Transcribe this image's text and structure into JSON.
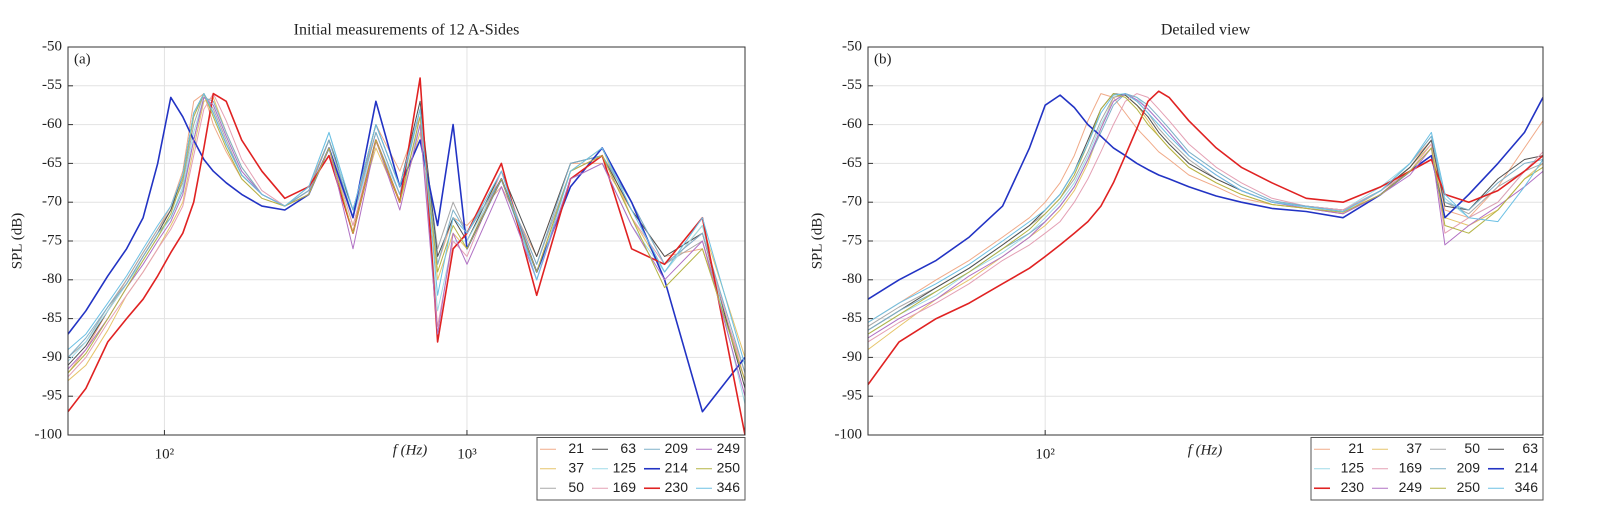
{
  "chart_data": [
    {
      "type": "line",
      "title": "Initial measurements of 12 A-Sides",
      "annotation": "(a)",
      "xlabel": "f (Hz)",
      "ylabel": "SPL (dB)",
      "xscale": "log",
      "grid": true,
      "legend": {
        "loc": "lower right",
        "columns": 4,
        "order": "column"
      },
      "xlim": [
        48,
        8300
      ],
      "ylim": [
        -100,
        -50
      ],
      "xticks": [
        {
          "value": 100,
          "label": "10²"
        },
        {
          "value": 1000,
          "label": "10³"
        }
      ],
      "yticks": [
        -50,
        -55,
        -60,
        -65,
        -70,
        -75,
        -80,
        -85,
        -90,
        -95,
        -100
      ],
      "x": [
        48,
        55,
        65,
        75,
        85,
        95,
        105,
        115,
        125,
        135,
        145,
        160,
        180,
        210,
        250,
        300,
        350,
        420,
        500,
        600,
        700,
        800,
        900,
        1000,
        1300,
        1700,
        2200,
        2800,
        3500,
        4500,
        6000,
        8300
      ],
      "series": [
        {
          "name": "21",
          "color": "#f0aa88",
          "values": [
            -92,
            -89,
            -84,
            -80,
            -76.5,
            -73.5,
            -70.5,
            -66,
            -57,
            -56,
            -60,
            -63.5,
            -67,
            -69.5,
            -70.5,
            -68,
            -62,
            -72,
            -60,
            -66,
            -59,
            -78,
            -72,
            -73,
            -68,
            -77,
            -65,
            -65,
            -71,
            -77,
            -76,
            -92
          ]
        },
        {
          "name": "37",
          "color": "#e6c46a",
          "values": [
            -93,
            -91,
            -86.5,
            -82,
            -79,
            -76,
            -73,
            -70,
            -63,
            -57,
            -56.5,
            -61,
            -65.5,
            -69,
            -70.5,
            -69,
            -63,
            -73,
            -63,
            -70,
            -61,
            -80,
            -74,
            -76,
            -66,
            -79,
            -66,
            -63,
            -72,
            -79,
            -73,
            -90
          ]
        },
        {
          "name": "50",
          "color": "#a8a8a8",
          "values": [
            -90,
            -88,
            -83.5,
            -80,
            -76.5,
            -73.5,
            -71,
            -67.5,
            -60,
            -56,
            -58,
            -62,
            -66.5,
            -69,
            -70.5,
            -68.5,
            -62,
            -71,
            -61,
            -69,
            -58,
            -76,
            -70,
            -74,
            -67,
            -78,
            -66,
            -64,
            -70,
            -78,
            -75,
            -93
          ]
        },
        {
          "name": "63",
          "color": "#505050",
          "values": [
            -91,
            -88.5,
            -84,
            -80.5,
            -77,
            -74,
            -71,
            -66.5,
            -58.5,
            -56,
            -58.5,
            -62.5,
            -66.5,
            -69,
            -70.5,
            -68.5,
            -62,
            -71,
            -60,
            -68,
            -57,
            -77,
            -72,
            -75,
            -66,
            -77,
            -65,
            -64,
            -71,
            -77,
            -74,
            -94
          ]
        },
        {
          "name": "125",
          "color": "#9fdbe8",
          "values": [
            -90.5,
            -88,
            -84,
            -80.5,
            -77.5,
            -74.5,
            -72,
            -68,
            -61,
            -56.5,
            -57.5,
            -61.5,
            -66,
            -69,
            -70.5,
            -68,
            -61,
            -72,
            -62,
            -69,
            -60,
            -84,
            -75,
            -75,
            -67,
            -80,
            -67,
            -65,
            -73,
            -79,
            -73,
            -96
          ]
        },
        {
          "name": "169",
          "color": "#e4a0b4",
          "values": [
            -92.5,
            -90,
            -85.5,
            -82,
            -79,
            -76,
            -73.5,
            -70.5,
            -64,
            -58,
            -56,
            -59.5,
            -64.5,
            -68.5,
            -70.5,
            -68.5,
            -63,
            -73,
            -62,
            -70,
            -59,
            -86,
            -75,
            -77,
            -66,
            -79,
            -66,
            -64,
            -72,
            -78,
            -74,
            -93
          ]
        },
        {
          "name": "209",
          "color": "#7eb0c8",
          "values": [
            -90,
            -87.5,
            -83.5,
            -80.5,
            -77,
            -74,
            -72,
            -68.5,
            -62,
            -56.5,
            -57,
            -61,
            -65.5,
            -69,
            -70.5,
            -68.5,
            -62,
            -72,
            -61,
            -69,
            -58,
            -78,
            -71,
            -74,
            -67,
            -78,
            -65,
            -64,
            -70,
            -78,
            -74,
            -92
          ]
        },
        {
          "name": "214",
          "color": "#2233c4",
          "linewidth": 1.6,
          "values": [
            -87,
            -84,
            -79.5,
            -76,
            -72,
            -65,
            -56.5,
            -59,
            -62,
            -64.5,
            -66,
            -67.5,
            -69,
            -70.5,
            -71,
            -69,
            -63,
            -72,
            -57,
            -68,
            -62,
            -73,
            -60,
            -76,
            -67,
            -79,
            -68,
            -63,
            -70,
            -80,
            -97,
            -90
          ]
        },
        {
          "name": "230",
          "color": "#e02222",
          "linewidth": 1.6,
          "values": [
            -97,
            -94,
            -88,
            -85,
            -82.5,
            -79.5,
            -76.5,
            -74,
            -70,
            -63,
            -56,
            -57,
            -62,
            -66,
            -69.5,
            -68,
            -64,
            -74,
            -62,
            -70,
            -54,
            -88,
            -76,
            -74,
            -65,
            -82,
            -67,
            -64,
            -76,
            -78,
            -72,
            -100
          ]
        },
        {
          "name": "249",
          "color": "#b070c4",
          "values": [
            -91.5,
            -89,
            -85,
            -81,
            -78,
            -75,
            -72.5,
            -69,
            -62,
            -56.5,
            -57.5,
            -61.5,
            -66,
            -69,
            -70.5,
            -69,
            -63,
            -76,
            -62,
            -71,
            -60,
            -87,
            -74,
            -78,
            -68,
            -80,
            -67,
            -65,
            -73,
            -80,
            -75,
            -95
          ]
        },
        {
          "name": "250",
          "color": "#b4b444",
          "values": [
            -92,
            -89.5,
            -85,
            -81,
            -77.5,
            -74.5,
            -71.5,
            -67,
            -59,
            -56,
            -59,
            -63,
            -67,
            -69.5,
            -70.5,
            -69,
            -63,
            -74,
            -62,
            -70,
            -59,
            -79,
            -73,
            -76,
            -67,
            -79,
            -66,
            -64,
            -72,
            -81,
            -76,
            -93
          ]
        },
        {
          "name": "346",
          "color": "#6cc0e4",
          "values": [
            -89,
            -87,
            -83,
            -79.5,
            -76,
            -73,
            -70.5,
            -66.5,
            -58.5,
            -56,
            -58.5,
            -62.5,
            -66.5,
            -69,
            -70.5,
            -68,
            -61,
            -71,
            -60,
            -68,
            -58,
            -82,
            -72,
            -74,
            -66,
            -80,
            -66,
            -63,
            -71,
            -79,
            -72,
            -91
          ]
        }
      ]
    },
    {
      "type": "line",
      "title": "Detailed view",
      "annotation": "(b)",
      "xlabel": "f (Hz)",
      "ylabel": "SPL (dB)",
      "xscale": "log",
      "grid": true,
      "legend": {
        "loc": "lower right",
        "columns": 4,
        "order": "row"
      },
      "xlim": [
        56,
        510
      ],
      "ylim": [
        -100,
        -50
      ],
      "xticks": [
        {
          "value": 100,
          "label": "10²"
        }
      ],
      "yticks": [
        -50,
        -55,
        -60,
        -65,
        -70,
        -75,
        -80,
        -85,
        -90,
        -95,
        -100
      ],
      "x": [
        56,
        62,
        70,
        78,
        87,
        95,
        100,
        105,
        110,
        115,
        120,
        125,
        130,
        135,
        140,
        145,
        150,
        160,
        175,
        190,
        210,
        235,
        265,
        300,
        330,
        354,
        370,
        400,
        440,
        480,
        510
      ],
      "series": [
        {
          "name": "21",
          "color": "#f0aa88",
          "values": [
            -85.5,
            -83,
            -80,
            -77.5,
            -74.5,
            -72,
            -70,
            -67.5,
            -64,
            -59.5,
            -56,
            -56.5,
            -58.5,
            -60.5,
            -62,
            -63.5,
            -64.5,
            -66.5,
            -68,
            -69.5,
            -70.3,
            -70.8,
            -71.5,
            -68.5,
            -65,
            -62,
            -71,
            -72,
            -68,
            -63,
            -59.5
          ]
        },
        {
          "name": "37",
          "color": "#e6c46a",
          "values": [
            -89,
            -86,
            -82.5,
            -80,
            -77,
            -74.5,
            -73,
            -71,
            -68.5,
            -65,
            -60.5,
            -56.5,
            -56.2,
            -57.5,
            -59.5,
            -61.5,
            -63,
            -65.5,
            -67.5,
            -69,
            -70.3,
            -70.8,
            -71.5,
            -69,
            -65.5,
            -62.5,
            -72,
            -73,
            -71,
            -67,
            -65
          ]
        },
        {
          "name": "50",
          "color": "#a8a8a8",
          "values": [
            -86,
            -83.5,
            -81,
            -78.5,
            -75.5,
            -73,
            -71.5,
            -69.5,
            -67,
            -63.5,
            -59.5,
            -56.5,
            -56,
            -57,
            -58.5,
            -60.5,
            -62,
            -64.5,
            -67,
            -68.5,
            -70,
            -70.5,
            -71,
            -68.5,
            -65.5,
            -62,
            -70,
            -71.5,
            -68,
            -66,
            -65
          ]
        },
        {
          "name": "63",
          "color": "#505050",
          "values": [
            -86.5,
            -84,
            -81,
            -78.5,
            -75.5,
            -73,
            -71,
            -69,
            -66,
            -62,
            -58,
            -56,
            -56.2,
            -57.5,
            -59,
            -61,
            -62.5,
            -65,
            -67,
            -68.5,
            -70,
            -70.5,
            -71,
            -68.5,
            -65.5,
            -62,
            -70.5,
            -71,
            -67,
            -64.5,
            -64
          ]
        },
        {
          "name": "125",
          "color": "#9fdbe8",
          "values": [
            -87,
            -84.5,
            -82,
            -79,
            -76.5,
            -74,
            -72,
            -70,
            -67.5,
            -64,
            -60,
            -57,
            -56,
            -56.5,
            -58,
            -59.5,
            -61,
            -64,
            -66.5,
            -68.5,
            -70,
            -70.5,
            -71,
            -68,
            -65,
            -61.5,
            -69.5,
            -72,
            -70,
            -66,
            -64
          ]
        },
        {
          "name": "169",
          "color": "#e4a0b4",
          "values": [
            -88,
            -85.5,
            -83,
            -80.5,
            -77.5,
            -75.5,
            -74,
            -72.5,
            -70,
            -67,
            -63.5,
            -60,
            -57,
            -56,
            -56.5,
            -58,
            -59.5,
            -62.5,
            -65.5,
            -67.5,
            -69.5,
            -70.5,
            -71,
            -68.5,
            -66,
            -62.5,
            -74,
            -72,
            -70,
            -66,
            -63.5
          ]
        },
        {
          "name": "209",
          "color": "#7eb0c8",
          "values": [
            -86.5,
            -84,
            -81.5,
            -79,
            -76,
            -74,
            -72.5,
            -70.5,
            -68,
            -64.5,
            -61,
            -57.5,
            -56,
            -56.5,
            -57.5,
            -59,
            -60.5,
            -63.5,
            -66,
            -68,
            -69.8,
            -70.5,
            -71.2,
            -68.5,
            -65,
            -61.5,
            -70,
            -71,
            -67.5,
            -65,
            -64.5
          ]
        },
        {
          "name": "214",
          "color": "#2233c4",
          "linewidth": 1.6,
          "values": [
            -82.5,
            -80,
            -77.5,
            -74.5,
            -70.5,
            -63,
            -57.5,
            -56.2,
            -57.8,
            -60,
            -61.5,
            -63,
            -64,
            -65,
            -65.8,
            -66.5,
            -67,
            -68,
            -69.2,
            -70,
            -70.8,
            -71.2,
            -72,
            -69,
            -66,
            -64,
            -72,
            -69,
            -65,
            -61,
            -56.5
          ]
        },
        {
          "name": "230",
          "color": "#e02222",
          "linewidth": 1.6,
          "values": [
            -93.5,
            -88,
            -85,
            -83,
            -80.5,
            -78.5,
            -77,
            -75.5,
            -74,
            -72.5,
            -70.5,
            -67.5,
            -64,
            -60.5,
            -57,
            -55.7,
            -56.5,
            -59.5,
            -63,
            -65.5,
            -67.5,
            -69.5,
            -70,
            -68,
            -66,
            -64.5,
            -69,
            -70,
            -68.5,
            -66,
            -64
          ]
        },
        {
          "name": "249",
          "color": "#b070c4",
          "values": [
            -87.5,
            -85,
            -82.5,
            -79.5,
            -77,
            -74.5,
            -72.5,
            -70.5,
            -68,
            -64.5,
            -60.5,
            -57,
            -56,
            -56.8,
            -58,
            -59.5,
            -61,
            -64,
            -66.5,
            -68.5,
            -70,
            -70.8,
            -71.5,
            -69,
            -66.5,
            -63,
            -75.5,
            -73,
            -70.5,
            -68,
            -66
          ]
        },
        {
          "name": "250",
          "color": "#b4b444",
          "values": [
            -87,
            -84.5,
            -81.5,
            -79,
            -76,
            -73.5,
            -71.5,
            -69.5,
            -66.5,
            -62.5,
            -58,
            -56,
            -56.5,
            -58,
            -60,
            -61.5,
            -63,
            -65.5,
            -67.5,
            -69,
            -70.3,
            -70.8,
            -71.3,
            -69,
            -66,
            -63,
            -73,
            -74,
            -71,
            -67,
            -65.5
          ]
        },
        {
          "name": "346",
          "color": "#6cc0e4",
          "values": [
            -85.5,
            -83,
            -80.5,
            -78,
            -75,
            -72.5,
            -71,
            -69,
            -66,
            -62.5,
            -58.5,
            -56.2,
            -56,
            -57,
            -58.5,
            -60,
            -61.5,
            -64,
            -66.5,
            -68.5,
            -70,
            -70.6,
            -71.2,
            -68.5,
            -65,
            -61,
            -69,
            -72,
            -72.5,
            -68,
            -64.5
          ]
        }
      ]
    }
  ]
}
